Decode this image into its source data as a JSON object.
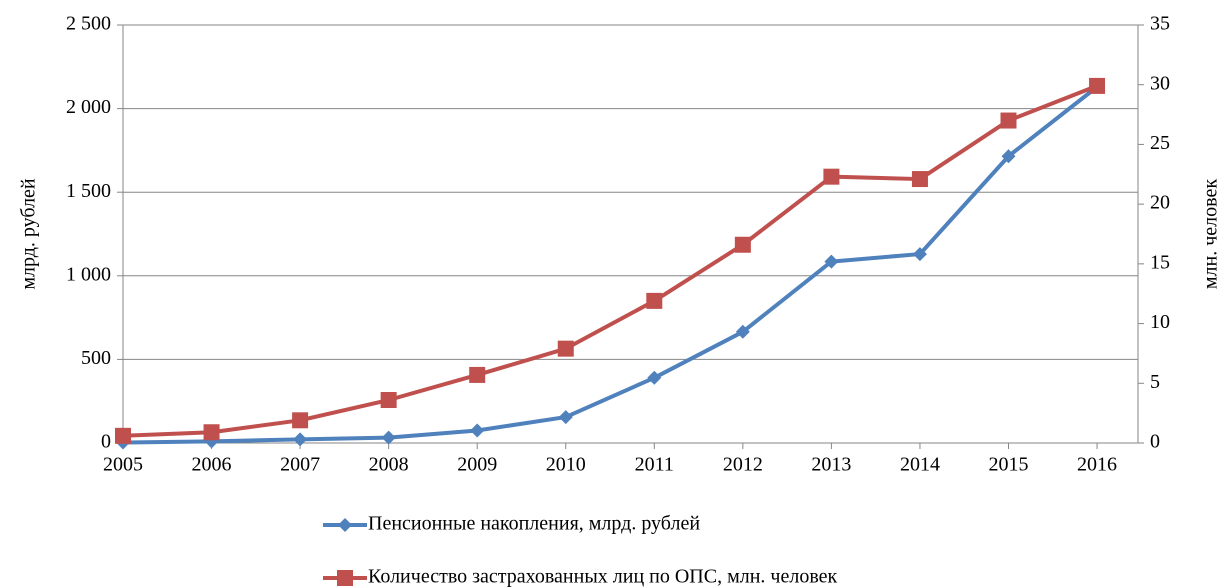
{
  "chart_data": {
    "type": "line",
    "categories": [
      "2005",
      "2006",
      "2007",
      "2008",
      "2009",
      "2010",
      "2011",
      "2012",
      "2013",
      "2014",
      "2015",
      "2016"
    ],
    "series": [
      {
        "name": "Пенсионные накопления, млрд. рублей",
        "color": "#4f81bd",
        "marker": "diamond",
        "values": [
          3,
          10,
          22,
          32,
          75,
          155,
          390,
          665,
          1085,
          1130,
          1715,
          2130
        ]
      },
      {
        "name": "Количество застрахованных лиц по ОПС, млн. человек",
        "color": "#c0504d",
        "marker": "square",
        "axis": "y2",
        "values": [
          0.6,
          0.9,
          1.9,
          3.6,
          5.7,
          7.9,
          11.9,
          16.6,
          22.3,
          22.1,
          27.0,
          29.9
        ]
      }
    ],
    "y_label": "млрд. рублей",
    "y2_label": "млн. человек",
    "ylim": [
      0,
      2500
    ],
    "yticks": [
      0,
      {
        "value": 500,
        "label": "500"
      },
      {
        "value": 1000,
        "label": "1 000"
      },
      {
        "value": 1500,
        "label": "1 500"
      },
      {
        "value": 2000,
        "label": "2 000"
      },
      {
        "value": 2500,
        "label": "2 500"
      }
    ],
    "y2lim": [
      0,
      35
    ],
    "y2ticks": [
      0,
      5,
      10,
      15,
      20,
      25,
      30,
      35
    ],
    "grid": true,
    "legend": "bottom"
  }
}
